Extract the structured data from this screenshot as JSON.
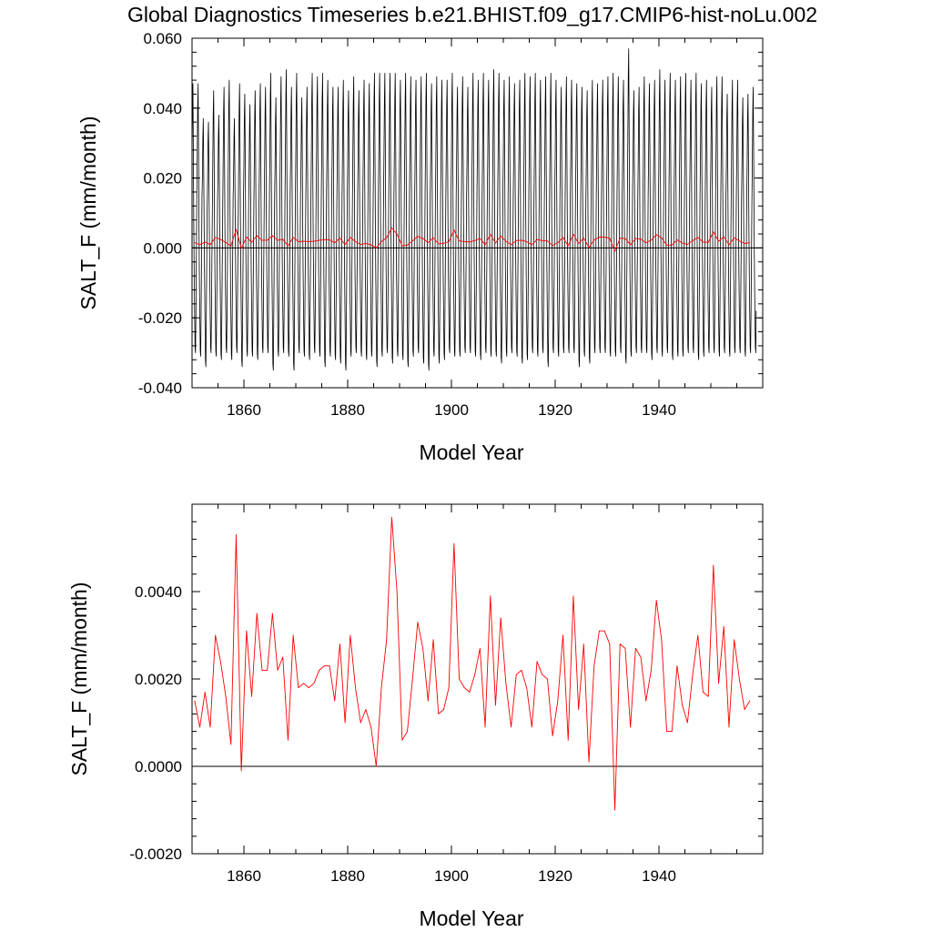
{
  "title": "Global Diagnostics Timeseries b.e21.BHIST.f09_g17.CMIP6-hist-noLu.002",
  "colors": {
    "monthly": "#000000",
    "annual": "#ff0000",
    "axis": "#000000"
  },
  "chart_data": [
    {
      "type": "line",
      "xlabel": "Model Year",
      "ylabel": "SALT_F (mm/month)",
      "xlim": [
        1850,
        1960
      ],
      "ylim": [
        -0.04,
        0.06
      ],
      "x_ticks": [
        "1860",
        "1880",
        "1900",
        "1920",
        "1940"
      ],
      "x_tick_values": [
        1860,
        1880,
        1900,
        1920,
        1940
      ],
      "y_ticks": [
        "-0.040",
        "-0.020",
        "0.000",
        "0.020",
        "0.040",
        "0.060"
      ],
      "y_tick_values": [
        -0.04,
        -0.02,
        0,
        0.02,
        0.04,
        0.06
      ],
      "grid": false,
      "reference_line": 0,
      "series": [
        {
          "kind": "monthly",
          "color": "#000000",
          "x_start": 1850.0,
          "x_step": 0.0833333,
          "pattern_note": "seasonal cycle amplitude approx -0.035 to 0.055",
          "annual_max": [
            0.047,
            0.047,
            0.037,
            0.036,
            0.045,
            0.038,
            0.046,
            0.048,
            0.037,
            0.047,
            0.044,
            0.041,
            0.045,
            0.047,
            0.046,
            0.05,
            0.043,
            0.049,
            0.051,
            0.046,
            0.05,
            0.043,
            0.046,
            0.05,
            0.049,
            0.05,
            0.048,
            0.046,
            0.046,
            0.048,
            0.045,
            0.049,
            0.045,
            0.048,
            0.047,
            0.05,
            0.05,
            0.05,
            0.05,
            0.05,
            0.048,
            0.05,
            0.049,
            0.048,
            0.049,
            0.05,
            0.047,
            0.049,
            0.048,
            0.048,
            0.05,
            0.046,
            0.049,
            0.046,
            0.05,
            0.048,
            0.05,
            0.048,
            0.051,
            0.05,
            0.048,
            0.049,
            0.047,
            0.048,
            0.05,
            0.049,
            0.05,
            0.048,
            0.049,
            0.05,
            0.048,
            0.046,
            0.049,
            0.048,
            0.047,
            0.046,
            0.045,
            0.048,
            0.047,
            0.048,
            0.049,
            0.05,
            0.049,
            0.048,
            0.057,
            0.045,
            0.046,
            0.049,
            0.047,
            0.048,
            0.051,
            0.048,
            0.05,
            0.048,
            0.049,
            0.05,
            0.048,
            0.05,
            0.047,
            0.048,
            0.046,
            0.049,
            0.049,
            0.044,
            0.048,
            0.048,
            0.043,
            0.044,
            0.046
          ],
          "annual_min": [
            -0.03,
            -0.031,
            -0.034,
            -0.03,
            -0.031,
            -0.032,
            -0.03,
            -0.032,
            -0.03,
            -0.034,
            -0.031,
            -0.031,
            -0.032,
            -0.03,
            -0.03,
            -0.035,
            -0.031,
            -0.03,
            -0.031,
            -0.035,
            -0.03,
            -0.031,
            -0.032,
            -0.03,
            -0.031,
            -0.034,
            -0.031,
            -0.032,
            -0.033,
            -0.035,
            -0.031,
            -0.03,
            -0.031,
            -0.032,
            -0.031,
            -0.034,
            -0.031,
            -0.03,
            -0.033,
            -0.031,
            -0.032,
            -0.034,
            -0.031,
            -0.03,
            -0.033,
            -0.035,
            -0.031,
            -0.033,
            -0.032,
            -0.03,
            -0.031,
            -0.031,
            -0.03,
            -0.03,
            -0.031,
            -0.032,
            -0.03,
            -0.031,
            -0.031,
            -0.033,
            -0.031,
            -0.03,
            -0.031,
            -0.033,
            -0.032,
            -0.03,
            -0.031,
            -0.03,
            -0.034,
            -0.03,
            -0.031,
            -0.03,
            -0.03,
            -0.03,
            -0.034,
            -0.031,
            -0.033,
            -0.03,
            -0.03,
            -0.03,
            -0.031,
            -0.031,
            -0.03,
            -0.033,
            -0.031,
            -0.03,
            -0.03,
            -0.03,
            -0.032,
            -0.03,
            -0.031,
            -0.03,
            -0.032,
            -0.031,
            -0.031,
            -0.03,
            -0.03,
            -0.032,
            -0.031,
            -0.03,
            -0.03,
            -0.031,
            -0.03,
            -0.031,
            -0.03,
            -0.03,
            -0.031,
            -0.03,
            -0.03
          ]
        },
        {
          "kind": "annual",
          "color": "#ff0000",
          "x_start": 1850.5,
          "x_step": 1,
          "values": [
            0.0015,
            0.0009,
            0.0017,
            0.0009,
            0.003,
            0.0024,
            0.0016,
            0.0005,
            0.0053,
            -0.0001,
            0.0031,
            0.0016,
            0.0035,
            0.0022,
            0.0022,
            0.0035,
            0.0022,
            0.0025,
            0.0006,
            0.003,
            0.0018,
            0.0019,
            0.0018,
            0.0019,
            0.0022,
            0.0023,
            0.0023,
            0.0015,
            0.0028,
            0.001,
            0.003,
            0.0018,
            0.001,
            0.0013,
            0.0009,
            0.0,
            0.0018,
            0.0029,
            0.0057,
            0.004,
            0.0006,
            0.0008,
            0.002,
            0.0033,
            0.0027,
            0.0015,
            0.0029,
            0.0012,
            0.0013,
            0.0018,
            0.0051,
            0.002,
            0.0018,
            0.0017,
            0.0021,
            0.0027,
            0.0009,
            0.0039,
            0.0014,
            0.0034,
            0.0019,
            0.0009,
            0.0021,
            0.0022,
            0.0018,
            0.0009,
            0.0024,
            0.0021,
            0.002,
            0.0007,
            0.0015,
            0.003,
            0.0006,
            0.0039,
            0.0013,
            0.0028,
            0.0001,
            0.0023,
            0.0031,
            0.0031,
            0.0028,
            -0.001,
            0.0028,
            0.0027,
            0.0009,
            0.0027,
            0.0025,
            0.0015,
            0.0022,
            0.0038,
            0.0029,
            0.0008,
            0.0008,
            0.0023,
            0.0014,
            0.001,
            0.0021,
            0.003,
            0.0017,
            0.0016,
            0.0046,
            0.0019,
            0.0032,
            0.0009,
            0.0029,
            0.002,
            0.0013,
            0.0015
          ]
        }
      ]
    },
    {
      "type": "line",
      "xlabel": "Model Year",
      "ylabel": "SALT_F (mm/month)",
      "xlim": [
        1850,
        1960
      ],
      "ylim": [
        -0.002,
        0.006
      ],
      "x_ticks": [
        "1860",
        "1880",
        "1900",
        "1920",
        "1940"
      ],
      "x_tick_values": [
        1860,
        1880,
        1900,
        1920,
        1940
      ],
      "y_ticks": [
        "-0.0020",
        "0.0000",
        "0.0020",
        "0.0040"
      ],
      "y_tick_values": [
        -0.002,
        0,
        0.002,
        0.004
      ],
      "grid": false,
      "reference_line": 0,
      "series": [
        {
          "kind": "annual",
          "color": "#ff0000",
          "x_start": 1850.5,
          "x_step": 1,
          "values": [
            0.0015,
            0.0009,
            0.0017,
            0.0009,
            0.003,
            0.0024,
            0.0016,
            0.0005,
            0.0053,
            -0.0001,
            0.0031,
            0.0016,
            0.0035,
            0.0022,
            0.0022,
            0.0035,
            0.0022,
            0.0025,
            0.0006,
            0.003,
            0.0018,
            0.0019,
            0.0018,
            0.0019,
            0.0022,
            0.0023,
            0.0023,
            0.0015,
            0.0028,
            0.001,
            0.003,
            0.0018,
            0.001,
            0.0013,
            0.0009,
            0.0,
            0.0018,
            0.0029,
            0.0057,
            0.004,
            0.0006,
            0.0008,
            0.002,
            0.0033,
            0.0027,
            0.0015,
            0.0029,
            0.0012,
            0.0013,
            0.0018,
            0.0051,
            0.002,
            0.0018,
            0.0017,
            0.0021,
            0.0027,
            0.0009,
            0.0039,
            0.0014,
            0.0034,
            0.0019,
            0.0009,
            0.0021,
            0.0022,
            0.0018,
            0.0009,
            0.0024,
            0.0021,
            0.002,
            0.0007,
            0.0015,
            0.003,
            0.0006,
            0.0039,
            0.0013,
            0.0028,
            0.0001,
            0.0023,
            0.0031,
            0.0031,
            0.0028,
            -0.001,
            0.0028,
            0.0027,
            0.0009,
            0.0027,
            0.0025,
            0.0015,
            0.0022,
            0.0038,
            0.0029,
            0.0008,
            0.0008,
            0.0023,
            0.0014,
            0.001,
            0.0021,
            0.003,
            0.0017,
            0.0016,
            0.0046,
            0.0019,
            0.0032,
            0.0009,
            0.0029,
            0.002,
            0.0013,
            0.0015
          ]
        }
      ]
    }
  ]
}
